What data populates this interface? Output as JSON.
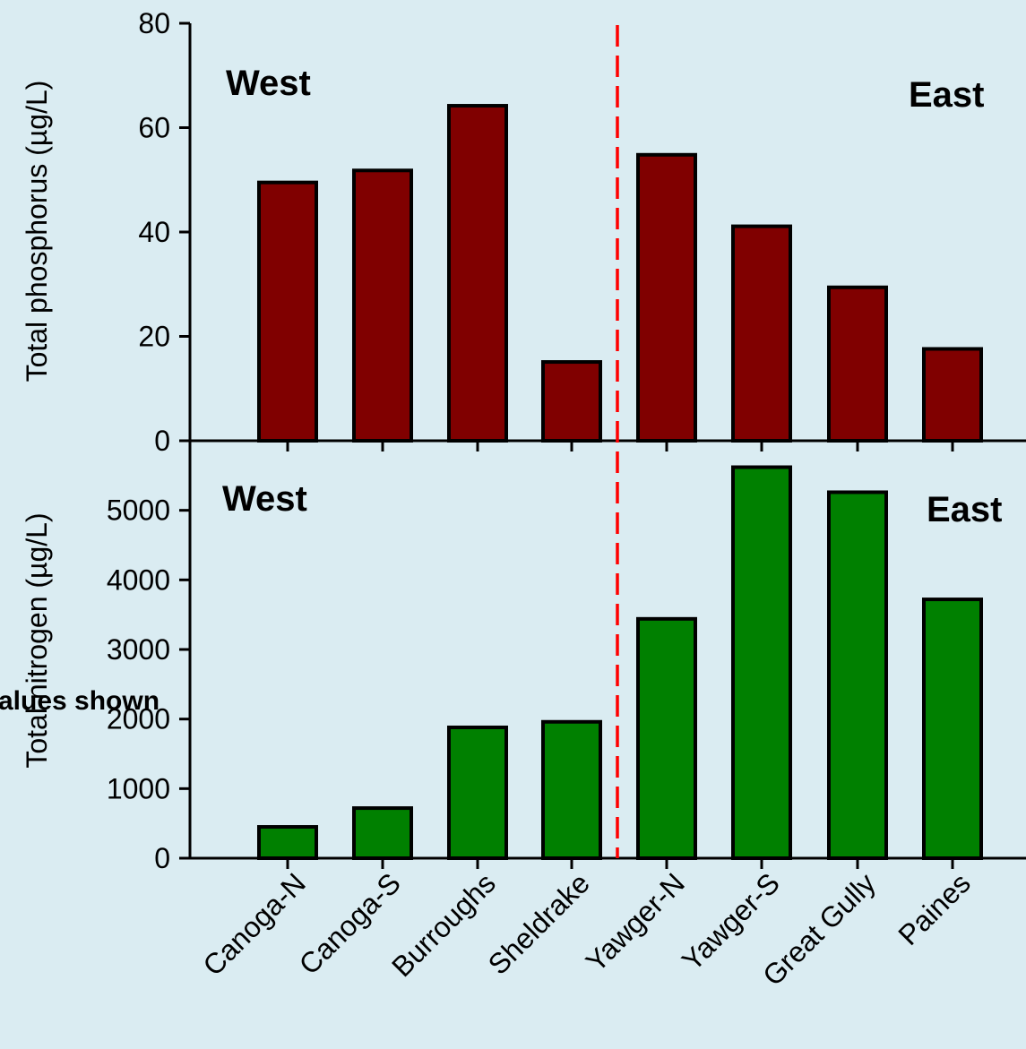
{
  "colors": {
    "background": "#daecf2",
    "phosphorus_bar": "#800000",
    "nitrogen_bar": "#008000",
    "divider": "#ff0000"
  },
  "footnote": "alues shown",
  "chart_data": [
    {
      "type": "bar",
      "ylabel": "Total phosphorus (µg/L)",
      "ylim": [
        0,
        80
      ],
      "yticks": [
        "0",
        "20",
        "40",
        "60",
        "80"
      ],
      "yticks_values": [
        0,
        20,
        40,
        60,
        80
      ],
      "region_labels": {
        "left": "West",
        "right": "East"
      },
      "categories": [
        "Canoga-N",
        "Canoga-S",
        "Burroughs",
        "Sheldrake",
        "Yawger-N",
        "Yawger-S",
        "Great Gully",
        "Paines"
      ],
      "values": [
        49.5,
        51.8,
        64.2,
        15.1,
        54.8,
        41.1,
        29.4,
        17.6
      ]
    },
    {
      "type": "bar",
      "ylabel": "Total nitrogen (µg/L)",
      "ylim": [
        0,
        6000
      ],
      "yticks": [
        "0",
        "1000",
        "2000",
        "3000",
        "4000",
        "5000"
      ],
      "yticks_values": [
        0,
        1000,
        2000,
        3000,
        4000,
        5000
      ],
      "region_labels": {
        "left": "West",
        "right": "East"
      },
      "categories": [
        "Canoga-N",
        "Canoga-S",
        "Burroughs",
        "Sheldrake",
        "Yawger-N",
        "Yawger-S",
        "Great Gully",
        "Paines"
      ],
      "values": [
        450,
        720,
        1880,
        1960,
        3440,
        5620,
        5260,
        3720
      ]
    }
  ]
}
